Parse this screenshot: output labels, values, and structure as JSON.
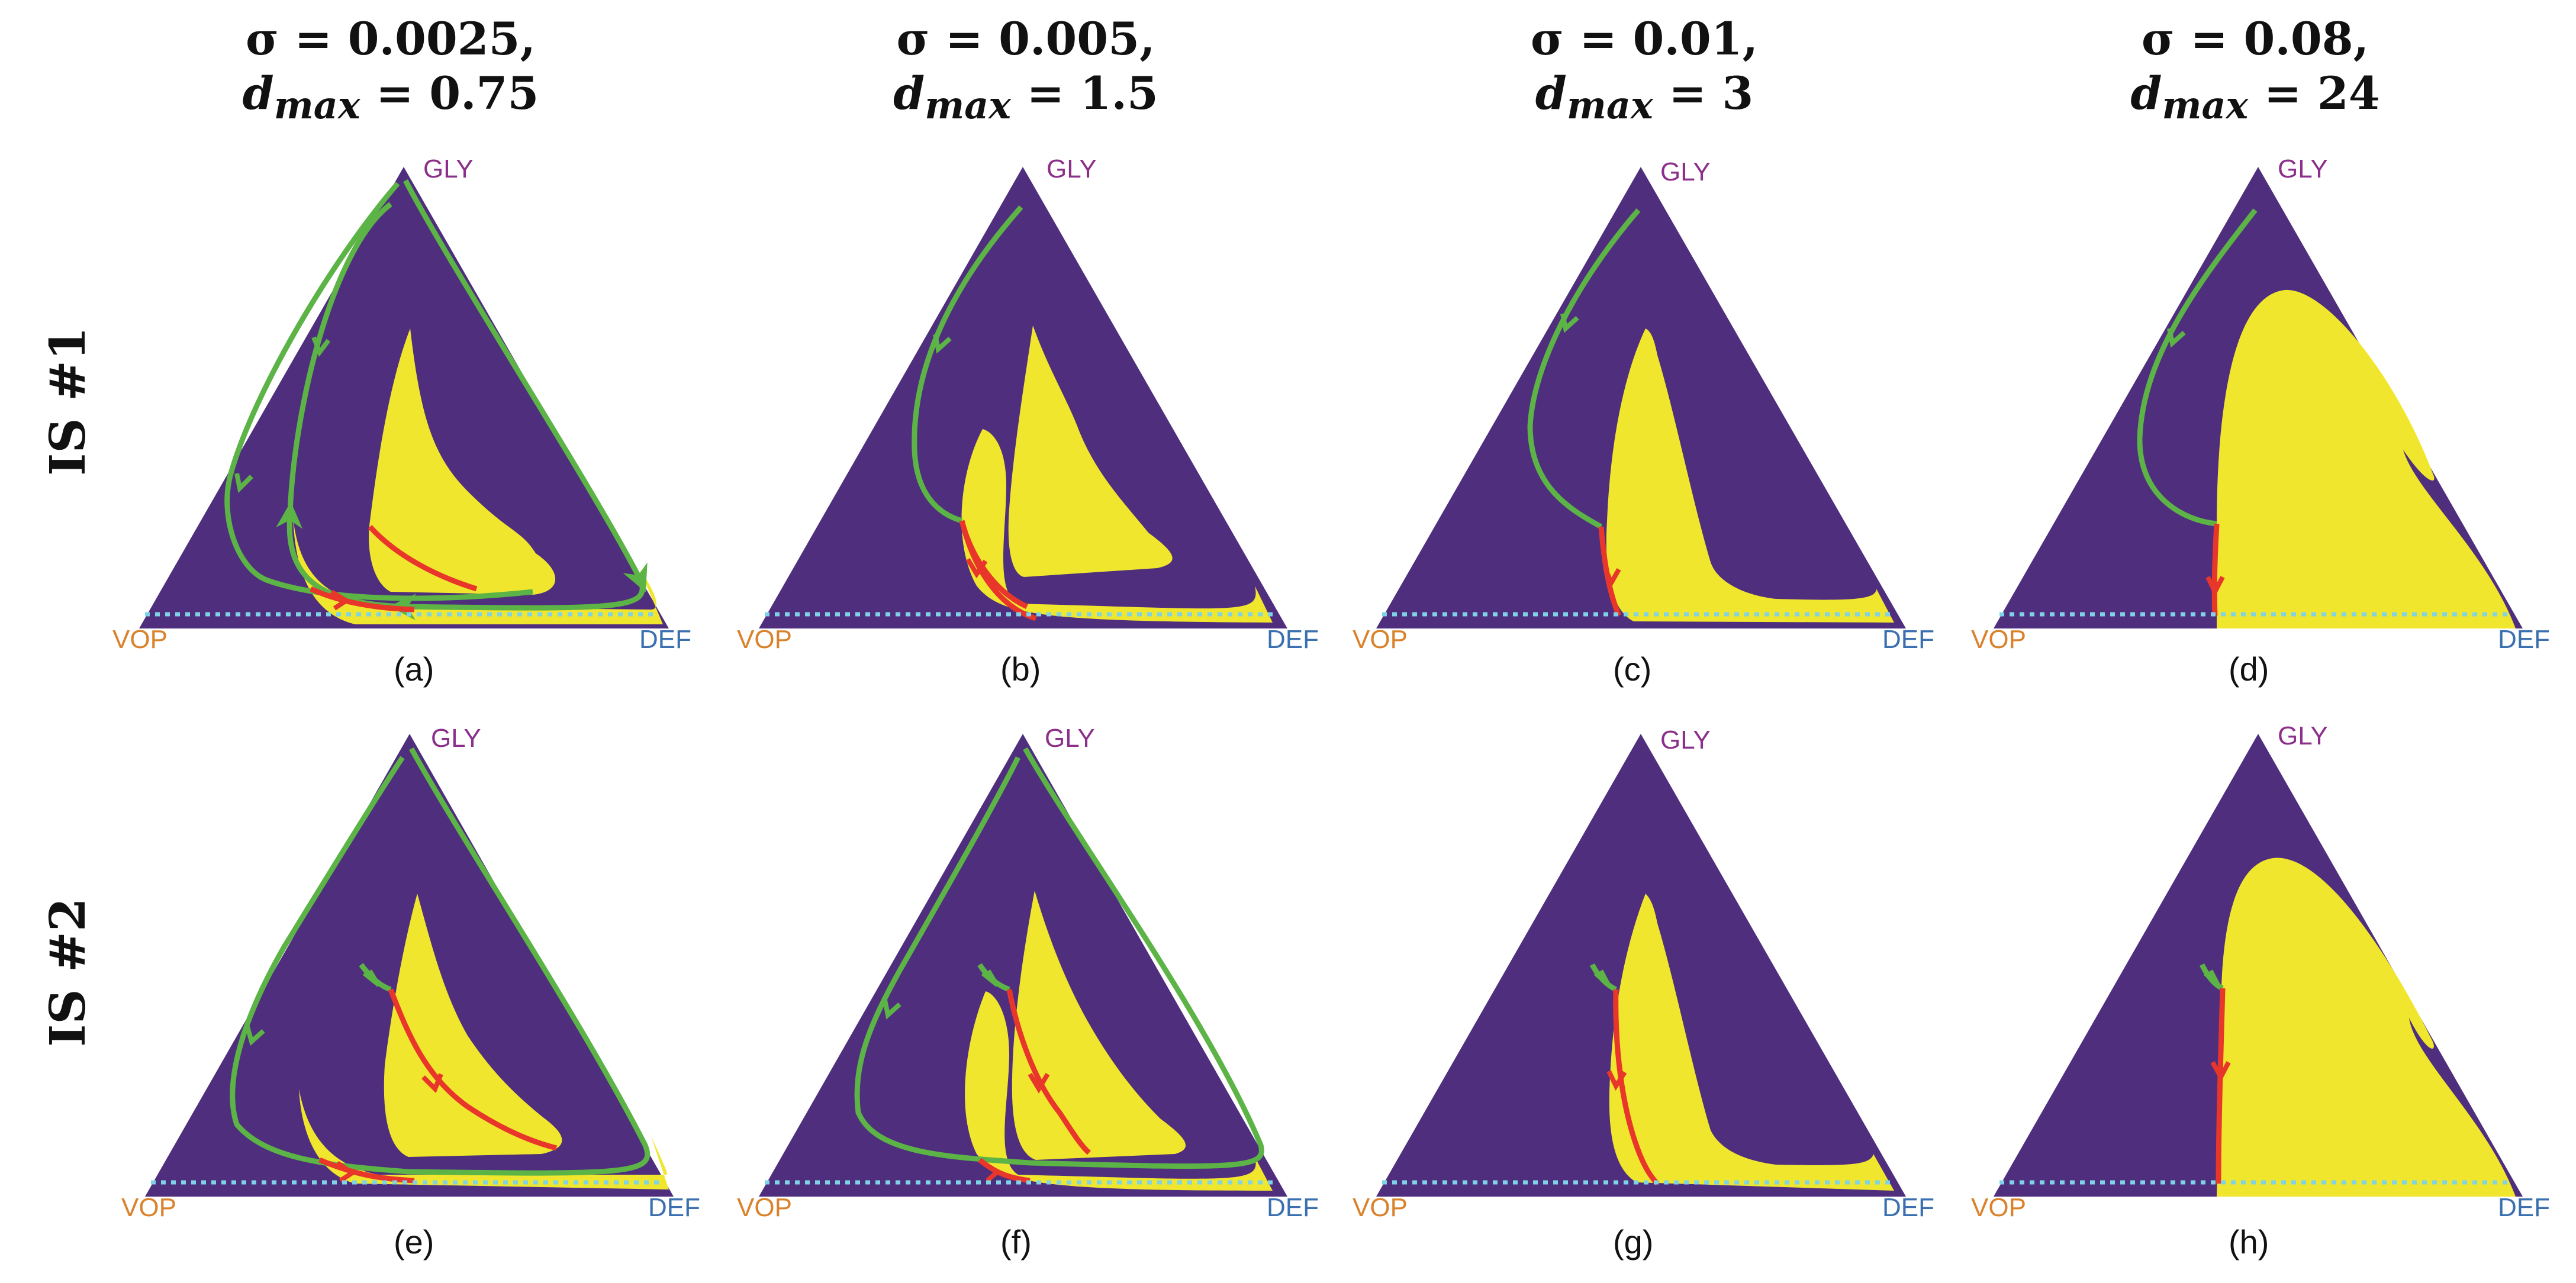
{
  "columns": [
    {
      "sigma": "σ = 0.0025,",
      "dmax": "= 0.75"
    },
    {
      "sigma": "σ = 0.005,",
      "dmax": "= 1.5"
    },
    {
      "sigma": "σ = 0.01,",
      "dmax": "= 3"
    },
    {
      "sigma": "σ = 0.08,",
      "dmax": "= 24"
    }
  ],
  "dmax_symbol": "d",
  "dmax_subscript": "max",
  "rows": [
    {
      "label": "IS #1"
    },
    {
      "label": "IS #2"
    }
  ],
  "vertex_labels": {
    "top": "GLY",
    "left": "VOP",
    "right": "DEF"
  },
  "panel_labels": [
    "(a)",
    "(b)",
    "(c)",
    "(d)",
    "(e)",
    "(f)",
    "(g)",
    "(h)"
  ],
  "colors": {
    "background": "#4e2e7d",
    "basin": "#f0e62d",
    "green_orbit": "#5cb346",
    "red_orbit": "#e8362b",
    "edge_dotted": "#7ed4e6",
    "gly_label": "#8b2f8b",
    "vop_label": "#d9822b",
    "def_label": "#3a6fb0"
  }
}
